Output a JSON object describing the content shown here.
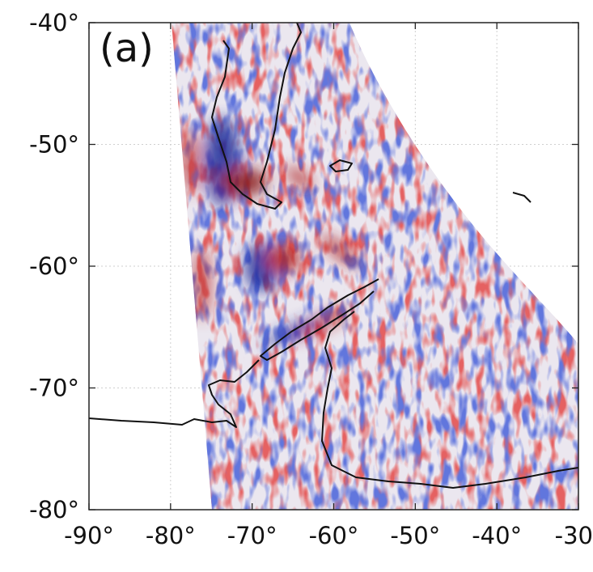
{
  "chart_data": {
    "type": "map",
    "panel_label": "(a)",
    "xlim": [
      -90,
      -30
    ],
    "ylim": [
      -80,
      -40
    ],
    "xticks": [
      {
        "value": -90,
        "label": "-90°"
      },
      {
        "value": -80,
        "label": "-80°"
      },
      {
        "value": -70,
        "label": "-70°"
      },
      {
        "value": -60,
        "label": "-60°"
      },
      {
        "value": -50,
        "label": "-50°"
      },
      {
        "value": -40,
        "label": "-40°"
      },
      -30
    ],
    "yticks": [
      {
        "value": -40,
        "label": "-40°"
      },
      {
        "value": -50,
        "label": "-50°"
      },
      {
        "value": -60,
        "label": "-60°"
      },
      {
        "value": -70,
        "label": "-70°"
      },
      {
        "value": -80,
        "label": "-80°"
      }
    ],
    "grid": true
  }
}
